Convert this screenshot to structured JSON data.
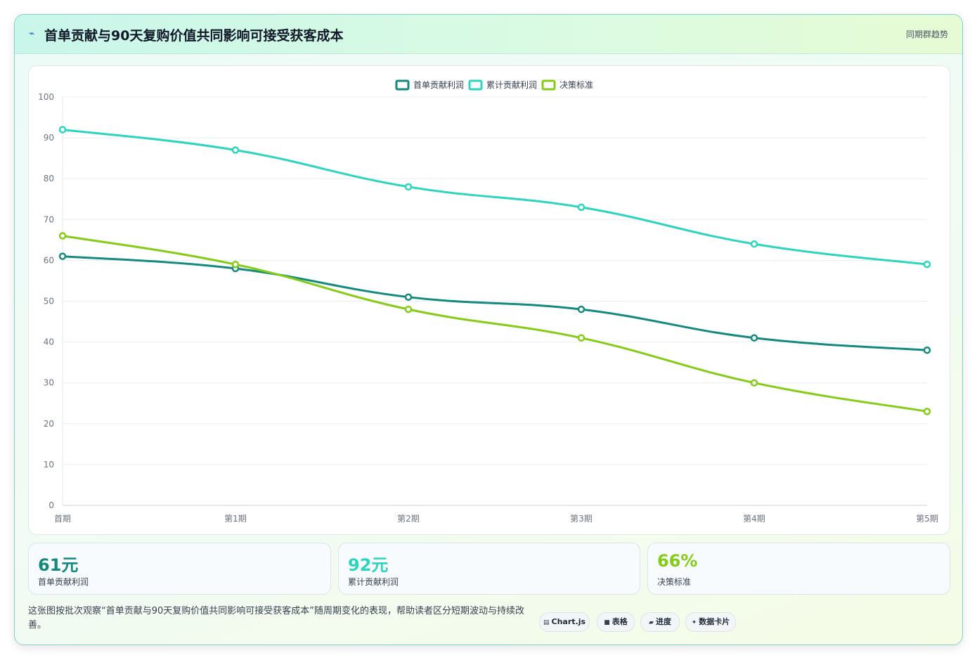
{
  "header": {
    "icon": "lightning-icon",
    "title": "首单贡献与90天复购价值共同影响可接受获客成本",
    "tag": "同期群趋势"
  },
  "chart_data": {
    "type": "line",
    "categories": [
      "首期",
      "第1期",
      "第2期",
      "第3期",
      "第4期",
      "第5期"
    ],
    "ylim": [
      0,
      100
    ],
    "yticks": [
      0,
      10,
      20,
      30,
      40,
      50,
      60,
      70,
      80,
      90,
      100
    ],
    "grid": true,
    "legend_position": "top-center",
    "series": [
      {
        "name": "首单贡献利润",
        "color": "#148a7e",
        "values": [
          61,
          58,
          51,
          48,
          41,
          38
        ]
      },
      {
        "name": "累计贡献利润",
        "color": "#2dd4bf",
        "values": [
          92,
          87,
          78,
          73,
          64,
          59
        ]
      },
      {
        "name": "决策标准",
        "color": "#84cc16",
        "values": [
          66,
          59,
          48,
          41,
          30,
          23
        ]
      }
    ]
  },
  "kpis": [
    {
      "value": "61元",
      "label": "首单贡献利润",
      "color": "#148a7e"
    },
    {
      "value": "92元",
      "label": "累计贡献利润",
      "color": "#2dd4bf"
    },
    {
      "value": "66%",
      "label": "决策标准",
      "color": "#84cc16"
    }
  ],
  "footer": {
    "description": "这张图按批次观察“首单贡献与90天复购价值共同影响可接受获客成本”随周期变化的表现，帮助读者区分短期波动与持续改善。",
    "pills": [
      {
        "icon": "chart-icon",
        "label": "Chart.js"
      },
      {
        "icon": "table-icon",
        "label": "表格"
      },
      {
        "icon": "progress-icon",
        "label": "进度"
      },
      {
        "icon": "sparkle-icon",
        "label": "数据卡片"
      }
    ]
  }
}
